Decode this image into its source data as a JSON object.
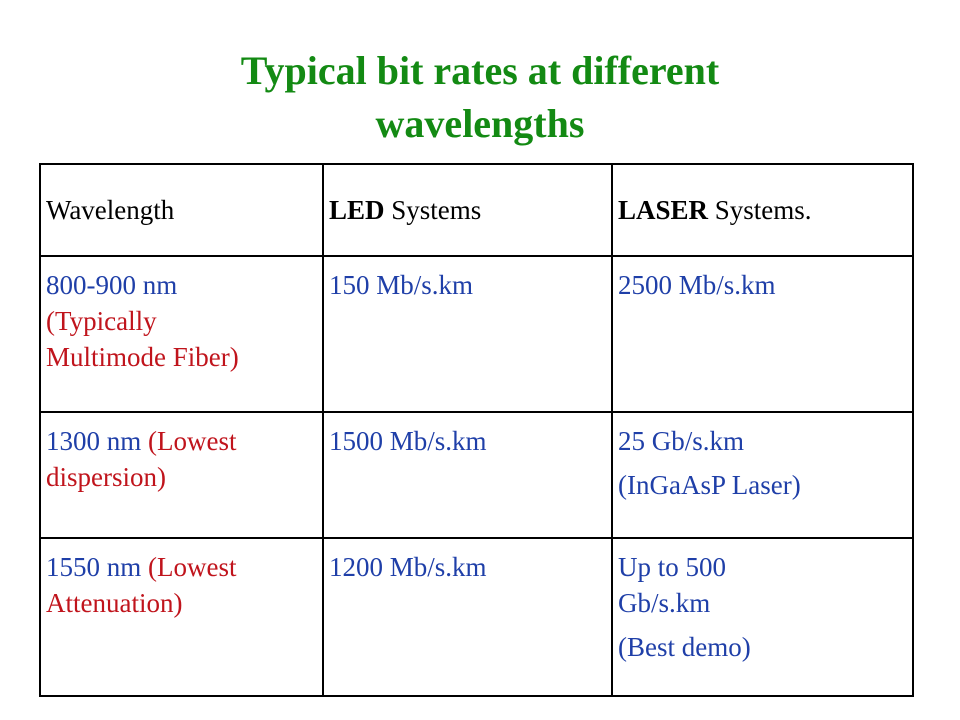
{
  "title": {
    "line1": "Typical bit rates at different",
    "line2": "wavelengths"
  },
  "colors": {
    "title": "#138a13",
    "wavelength": "#1f3fa8",
    "note": "#c0141c",
    "header": "#000000"
  },
  "table": {
    "headers": {
      "wavelength": "Wavelength",
      "led_bold": "LED",
      "led_rest": " Systems",
      "laser_bold": "LASER",
      "laser_rest": " Systems."
    },
    "rows": [
      {
        "wavelength": "800-900 nm",
        "note_line1": "(Typically",
        "note_line2": "Multimode Fiber)",
        "led": "150 Mb/s.km",
        "laser_line1": "2500 Mb/s.km"
      },
      {
        "wavelength": "1300 nm",
        "note_line1": " (Lowest",
        "note_line2": "dispersion)",
        "led": "1500 Mb/s.km",
        "laser_line1": "25 Gb/s.km",
        "laser_line2": "(InGaAsP  Laser)"
      },
      {
        "wavelength": "1550 nm",
        "note_line1": " (Lowest",
        "note_line2": "Attenuation)",
        "led": "1200 Mb/s.km",
        "laser_line1": "Up to 500",
        "laser_line2": "Gb/s.km",
        "laser_line3": "(Best demo)"
      }
    ]
  }
}
